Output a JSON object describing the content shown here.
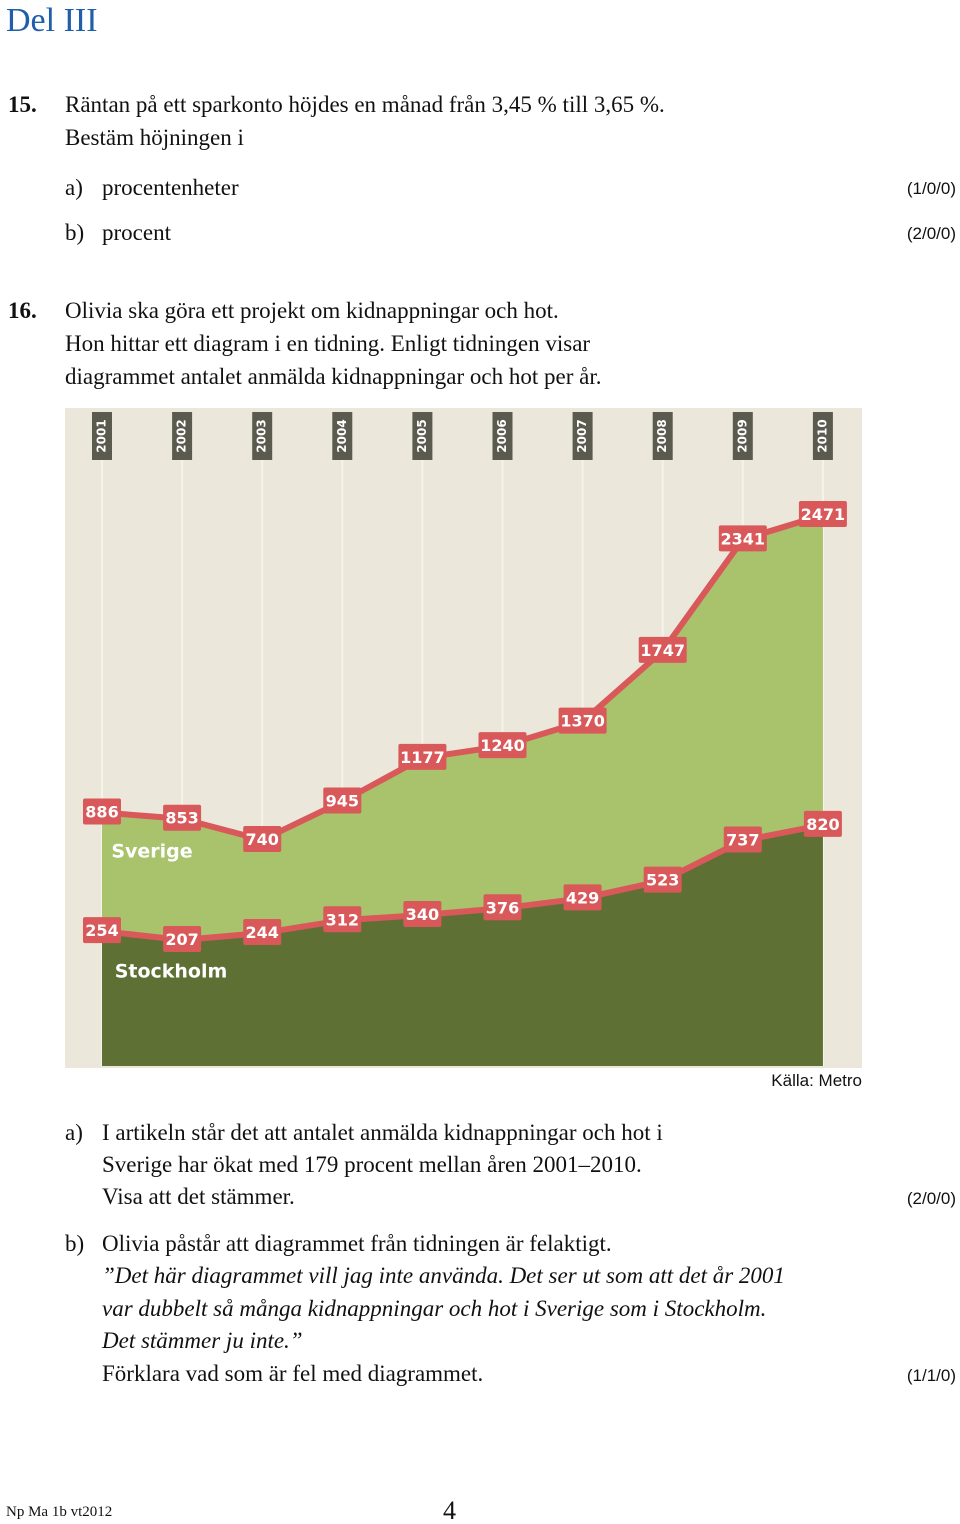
{
  "header": {
    "title": "Del III"
  },
  "questions": [
    {
      "number": "15.",
      "text": [
        "Räntan på ett sparkonto höjdes en månad från 3,45 % till 3,65 %.",
        "Bestäm höjningen i"
      ],
      "parts": [
        {
          "label": "a)",
          "text": [
            "procentenheter"
          ],
          "points": "(1/0/0)"
        },
        {
          "label": "b)",
          "text": [
            "procent"
          ],
          "points": "(2/0/0)"
        }
      ]
    },
    {
      "number": "16.",
      "text": [
        "Olivia ska göra ett projekt om kidnappningar och hot.",
        "Hon hittar ett diagram i en tidning. Enligt tidningen visar",
        "diagrammet antalet anmälda kidnappningar och hot per år."
      ],
      "parts": [
        {
          "label": "a)",
          "text": [
            "I artikeln står det att antalet anmälda kidnappningar och hot i",
            "Sverige har ökat med 179 procent mellan åren 2001–2010.",
            "Visa att det stämmer."
          ],
          "points": "(2/0/0)"
        },
        {
          "label": "b)",
          "text": [
            "Olivia påstår att diagrammet från tidningen är felaktigt."
          ],
          "quote": [
            "”Det här diagrammet vill jag inte använda. Det ser ut som att det år 2001",
            "var dubbelt så många kidnappningar och hot i Sverige som i Stockholm.",
            "Det stämmer ju inte.”"
          ],
          "task": "Förklara vad som är fel med diagrammet.",
          "points": "(1/1/0)"
        }
      ]
    }
  ],
  "chart_data": {
    "type": "area",
    "categories": [
      "2001",
      "2002",
      "2003",
      "2004",
      "2005",
      "2006",
      "2007",
      "2008",
      "2009",
      "2010"
    ],
    "series": [
      {
        "name": "Sverige",
        "color": "#a9c26c",
        "values": [
          886,
          853,
          740,
          945,
          1177,
          1240,
          1370,
          1747,
          2341,
          2471
        ]
      },
      {
        "name": "Stockholm",
        "color": "#5f7035",
        "values": [
          254,
          207,
          244,
          312,
          340,
          376,
          429,
          523,
          737,
          820
        ]
      }
    ],
    "line_color": "#d9585a",
    "source": "Källa: Metro"
  },
  "footer": {
    "code": "Np Ma 1b vt2012",
    "page": "4"
  }
}
